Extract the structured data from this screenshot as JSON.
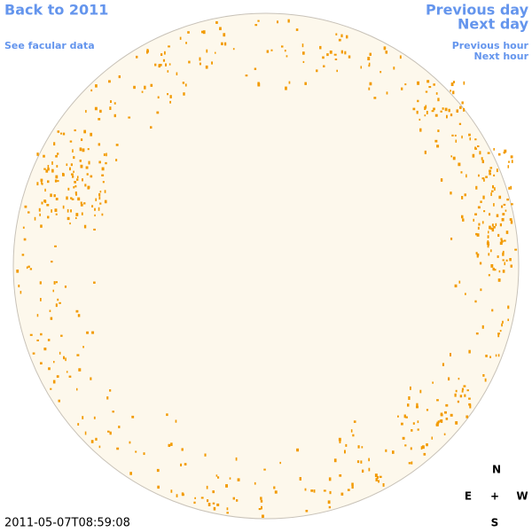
{
  "links": {
    "back": "Back to 2011",
    "facular": "See facular data",
    "previous_day": "Previous day",
    "next_day": "Next day",
    "previous_hour": "Previous hour",
    "next_hour": "Next hour"
  },
  "compass": {
    "north": "N",
    "east": "E",
    "center": "+",
    "west": "W",
    "south": "S"
  },
  "timestamp": "2011-05-07T08:59:08"
}
